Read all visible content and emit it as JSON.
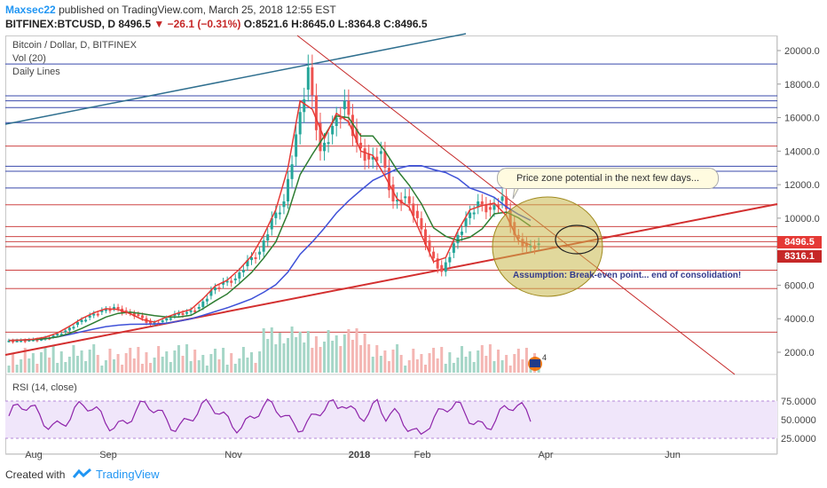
{
  "header": {
    "author": "Maxsec22",
    "published": "published on TradingView.com, March 25, 2018 12:55 EST",
    "symbol": "BITFINEX:BTCUSD, D",
    "last": "8496.5",
    "change": "−26.1 (−0.31%)",
    "ohlc": "O:8521.6 H:8645.0 L:8364.8 C:8496.5"
  },
  "legend": {
    "title": "Bitcoin / Dollar, D, BITFINEX",
    "vol": "Vol (20)",
    "lines": "Daily Lines"
  },
  "rsi": {
    "label": "RSI (14, close)"
  },
  "annotations": {
    "callout": "Price zone potential in the next few days...",
    "assumption": "Assumption: Break-even point... end of consolidation!"
  },
  "badges": {
    "current": "8496.5",
    "level": "8316.1",
    "current_color": "#e53935",
    "level_color": "#c62828"
  },
  "footer": {
    "created_with": "Created with",
    "brand": "TradingView"
  },
  "colors": {
    "ma_red": "#e53935",
    "ma_green": "#2e7d32",
    "ma_blue": "#3f51d8",
    "trend_blue": "#2f6f8f",
    "hline_blue": "#3949ab",
    "hline_red": "#c62828"
  },
  "chart_data": {
    "type": "line",
    "title": "Bitcoin / Dollar, D, BITFINEX",
    "price_axis": [
      "20000.0",
      "18000.0",
      "16000.0",
      "14000.0",
      "12000.0",
      "10000.0",
      "6000.0",
      "4000.0",
      "2000.0"
    ],
    "rsi_axis": [
      "75.0000",
      "50.0000",
      "25.0000"
    ],
    "x_labels": [
      "Aug",
      "Sep",
      "Nov",
      "2018",
      "Feb",
      "Apr",
      "Jun"
    ],
    "ylim": [
      0,
      21000
    ],
    "close_series": [
      2700,
      2750,
      2800,
      3000,
      3300,
      3800,
      4200,
      4500,
      4700,
      4400,
      4200,
      3700,
      3900,
      4300,
      4400,
      4700,
      5700,
      6200,
      6400,
      7500,
      8000,
      10000,
      11000,
      15000,
      19000,
      14000,
      15500,
      17000,
      14500,
      13500,
      14000,
      11000,
      11300,
      10000,
      8000,
      6800,
      8500,
      10000,
      11000,
      10500,
      11300,
      9000,
      8300,
      8500
    ]
  }
}
